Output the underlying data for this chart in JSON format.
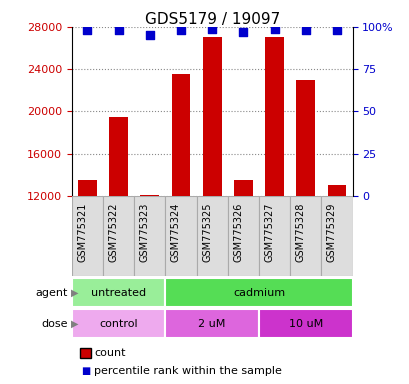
{
  "title": "GDS5179 / 19097",
  "samples": [
    "GSM775321",
    "GSM775322",
    "GSM775323",
    "GSM775324",
    "GSM775325",
    "GSM775326",
    "GSM775327",
    "GSM775328",
    "GSM775329"
  ],
  "counts": [
    13500,
    19500,
    12100,
    23500,
    27000,
    13500,
    27000,
    23000,
    13000
  ],
  "percentiles": [
    98,
    98,
    95,
    98,
    99,
    97,
    99,
    98,
    98
  ],
  "ylim_left": [
    12000,
    28000
  ],
  "ylim_right": [
    0,
    100
  ],
  "yticks_left": [
    12000,
    16000,
    20000,
    24000,
    28000
  ],
  "yticks_right": [
    0,
    25,
    50,
    75,
    100
  ],
  "bar_color": "#cc0000",
  "dot_color": "#0000cc",
  "bar_width": 0.6,
  "agent_groups": [
    {
      "label": "untreated",
      "start": 0,
      "end": 3,
      "color": "#99ee99"
    },
    {
      "label": "cadmium",
      "start": 3,
      "end": 9,
      "color": "#55dd55"
    }
  ],
  "dose_groups": [
    {
      "label": "control",
      "start": 0,
      "end": 3,
      "color": "#eeaaee"
    },
    {
      "label": "2 uM",
      "start": 3,
      "end": 6,
      "color": "#dd66dd"
    },
    {
      "label": "10 uM",
      "start": 6,
      "end": 9,
      "color": "#cc33cc"
    }
  ],
  "legend_count_color": "#cc0000",
  "legend_dot_color": "#0000cc",
  "background_color": "#ffffff",
  "grid_color": "#888888",
  "tick_label_color_left": "#cc0000",
  "tick_label_color_right": "#0000cc",
  "sample_box_color": "#dddddd",
  "sample_box_edge": "#aaaaaa"
}
